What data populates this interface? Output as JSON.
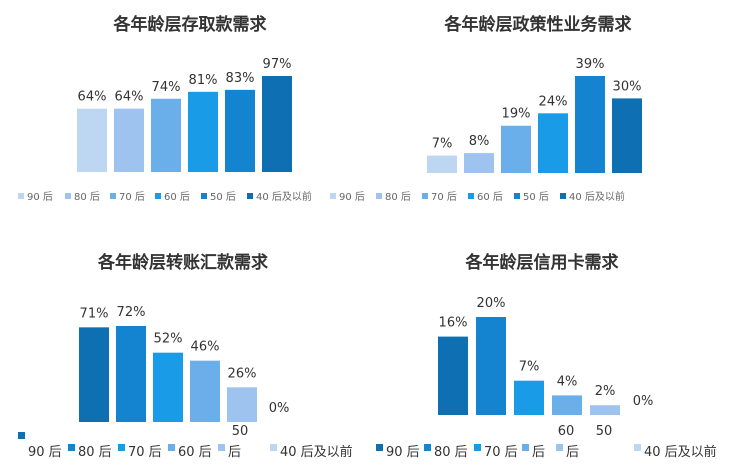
{
  "chart_data": [
    {
      "type": "bar",
      "title": "各年龄层存取款需求",
      "categories": [
        "90后",
        "80后",
        "70后",
        "60后",
        "50后",
        "40后及以前"
      ],
      "values": [
        64,
        64,
        74,
        81,
        83,
        97
      ],
      "labels": [
        "64%",
        "64%",
        "74%",
        "81%",
        "83%",
        "97%"
      ],
      "ylim": [
        0,
        100
      ],
      "legend_position": "bottom",
      "grid": false
    },
    {
      "type": "bar",
      "title": "各年龄层政策性业务需求",
      "categories": [
        "90后",
        "80后",
        "70后",
        "60后",
        "50后",
        "40后及以前"
      ],
      "values": [
        7,
        8,
        19,
        24,
        39,
        30
      ],
      "labels": [
        "7%",
        "8%",
        "19%",
        "24%",
        "39%",
        "30%"
      ],
      "ylim": [
        0,
        40
      ],
      "legend_position": "bottom",
      "grid": false
    },
    {
      "type": "bar",
      "title": "各年龄层转账汇款需求",
      "categories": [
        "90后",
        "80后",
        "70后",
        "60后",
        "50后",
        "40后及以前"
      ],
      "values": [
        71,
        72,
        52,
        46,
        26,
        0
      ],
      "labels": [
        "71%",
        "72%",
        "52%",
        "46%",
        "26%",
        "0%"
      ],
      "ylim": [
        0,
        75
      ],
      "legend_position": "bottom",
      "grid": false
    },
    {
      "type": "bar",
      "title": "各年龄层信用卡需求",
      "categories": [
        "90后",
        "80后",
        "70后",
        "60后",
        "50后",
        "40后及以前"
      ],
      "values": [
        16,
        20,
        7,
        4,
        2,
        0
      ],
      "labels": [
        "16%",
        "20%",
        "7%",
        "4%",
        "2%",
        "0%"
      ],
      "ylim": [
        0,
        21
      ],
      "legend_position": "bottom",
      "grid": false
    }
  ],
  "colors": {
    "top_series": [
      "#bdd7f2",
      "#9dc3ee",
      "#6aaeea",
      "#1a9be8",
      "#1483d0",
      "#0f6fb3"
    ],
    "bottom_series": [
      "#0f6fb3",
      "#1483d0",
      "#1a9be8",
      "#6aaeea",
      "#9dc3ee",
      "#bdd7f2"
    ]
  },
  "legend_top": [
    {
      "label": "90 后"
    },
    {
      "label": "80 后"
    },
    {
      "label": "70 后"
    },
    {
      "label": "60 后"
    },
    {
      "label": "50 后"
    },
    {
      "label": "40 后及以前"
    },
    {
      "label": "90 后"
    },
    {
      "label": "80 后"
    },
    {
      "label": "70 后"
    },
    {
      "label": "60 后"
    },
    {
      "label": "50 后"
    },
    {
      "label": "40 后及以前"
    }
  ],
  "legend_bottom": [
    {
      "label": "90 后"
    },
    {
      "label": "80 后"
    },
    {
      "label": "70 后"
    },
    {
      "label": "60 后"
    },
    {
      "label": "后"
    },
    {
      "label": "40 后及以前"
    },
    {
      "label": "90 后"
    },
    {
      "label": "80 后"
    },
    {
      "label": "70 后"
    },
    {
      "label": "后"
    },
    {
      "label": "后"
    },
    {
      "label": "40 后及以前"
    }
  ],
  "stray_labels": [
    "50",
    "60",
    "50"
  ]
}
